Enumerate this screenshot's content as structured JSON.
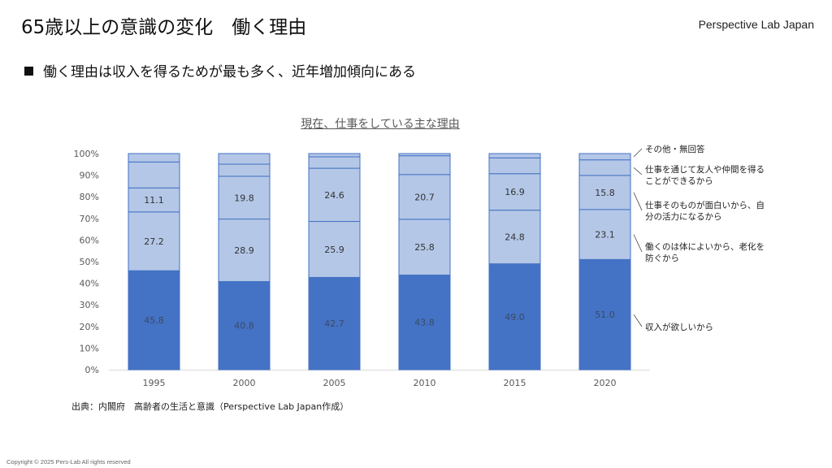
{
  "header": {
    "title": "65歳以上の意識の変化　働く理由",
    "brand": "Perspective Lab Japan"
  },
  "bullet": {
    "text": "働く理由は収入を得るためが最も多く、近年増加傾向にある"
  },
  "source": "出典：内閣府　高齢者の生活と意識（Perspective Lab Japan作成）",
  "copyright": "Copyright © 2025 Pers-Lab All rights reserved",
  "colors": {
    "dark_bar": "#4472c4",
    "light_bar": "#b4c7e7",
    "border": "#4472c4",
    "axis_text": "#595959"
  },
  "chart_data": {
    "type": "bar",
    "stacked": true,
    "percent_scale": true,
    "title": "現在、仕事をしている主な理由",
    "categories": [
      "1995",
      "2000",
      "2005",
      "2010",
      "2015",
      "2020"
    ],
    "ylim": [
      0,
      100
    ],
    "y_ticks": [
      "0%",
      "10%",
      "20%",
      "30%",
      "40%",
      "50%",
      "60%",
      "70%",
      "80%",
      "90%",
      "100%"
    ],
    "series": [
      {
        "name": "収入が欲しいから",
        "values": [
          45.8,
          40.8,
          42.7,
          43.8,
          49.0,
          51.0
        ],
        "labels": [
          "45.8",
          "40.8",
          "42.7",
          "43.8",
          "49.0",
          "51.0"
        ]
      },
      {
        "name": "働くのは体によいから、老化を防ぐから",
        "values": [
          27.2,
          28.9,
          25.9,
          25.8,
          24.8,
          23.1
        ],
        "labels": [
          "27.2",
          "28.9",
          "25.9",
          "25.8",
          "24.8",
          "23.1"
        ]
      },
      {
        "name": "仕事そのものが面白いから、自分の活力になるから",
        "values": [
          11.1,
          19.8,
          24.6,
          20.7,
          16.9,
          15.8
        ],
        "labels": [
          "11.1",
          "19.8",
          "24.6",
          "20.7",
          "16.9",
          "15.8"
        ]
      },
      {
        "name": "仕事を通じて友人や仲間を得ることができるから",
        "values": [
          12.0,
          5.6,
          5.3,
          8.7,
          7.3,
          7.2
        ],
        "labels": null
      },
      {
        "name": "その他・無回答",
        "values": [
          3.9,
          4.9,
          1.5,
          1.0,
          2.0,
          2.9
        ],
        "labels": null
      }
    ],
    "legend": [
      {
        "lines": [
          "その他・無回答"
        ]
      },
      {
        "lines": [
          "仕事を通じて友人や仲間を得る",
          "ことができるから"
        ]
      },
      {
        "lines": [
          "仕事そのものが面白いから、自",
          "分の活力になるから"
        ]
      },
      {
        "lines": [
          "働くのは体によいから、老化を",
          "防ぐから"
        ]
      },
      {
        "lines": [
          "収入が欲しいから"
        ]
      }
    ]
  }
}
